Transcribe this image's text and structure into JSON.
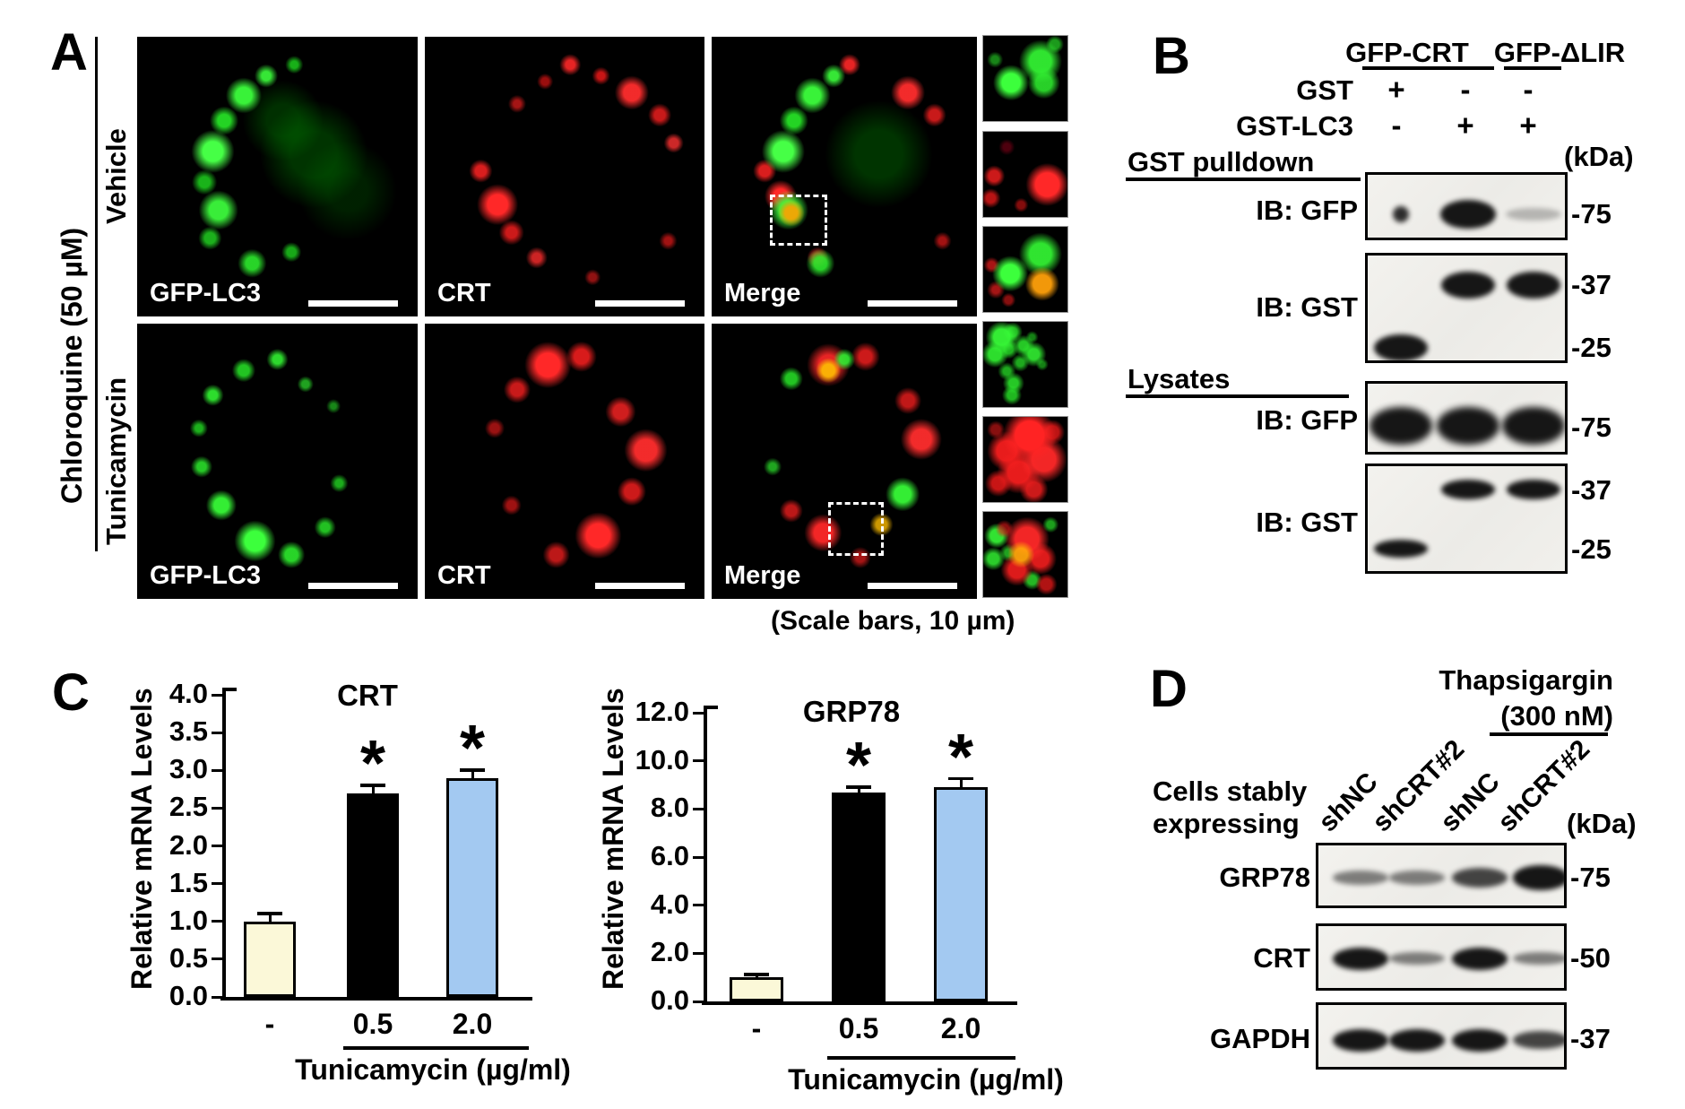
{
  "figure": {
    "panel_a": {
      "label": "A",
      "condition_label": "Chloroquine (50 µM)",
      "row_labels": [
        "Vehicle",
        "Tunicamycin"
      ],
      "channel_labels": [
        "GFP-LC3",
        "CRT",
        "Merge"
      ],
      "scale_note": "(Scale bars, 10 µm)"
    },
    "panel_b": {
      "label": "B",
      "group_labels": [
        "GFP-CRT",
        "GFP-ΔLIR"
      ],
      "condition_rows": [
        {
          "label": "GST",
          "values": [
            "+",
            "-",
            "-"
          ]
        },
        {
          "label": "GST-LC3",
          "values": [
            "-",
            "+",
            "+"
          ]
        }
      ],
      "kda_label": "(kDa)",
      "sections": [
        {
          "label": "GST pulldown",
          "blots": [
            {
              "antibody": "IB: GFP",
              "rows": [
                {
                  "marker": "-75",
                  "lanes": [
                    "dot",
                    "strong",
                    "faint"
                  ]
                }
              ]
            },
            {
              "antibody": "IB: GST",
              "rows": [
                {
                  "marker": "-37",
                  "lanes": [
                    "none",
                    "strong",
                    "strong"
                  ]
                },
                {
                  "marker": "-25",
                  "lanes": [
                    "strong",
                    "none",
                    "none"
                  ]
                }
              ]
            }
          ]
        },
        {
          "label": "Lysates",
          "blots": [
            {
              "antibody": "IB: GFP",
              "rows": [
                {
                  "marker": "-75",
                  "lanes": [
                    "strong",
                    "strong",
                    "strong"
                  ]
                }
              ]
            },
            {
              "antibody": "IB: GST",
              "rows": [
                {
                  "marker": "-37",
                  "lanes": [
                    "none",
                    "strong",
                    "strong"
                  ]
                },
                {
                  "marker": "-25",
                  "lanes": [
                    "strong",
                    "none",
                    "none"
                  ]
                }
              ]
            }
          ]
        }
      ]
    },
    "panel_c": {
      "label": "C"
    },
    "panel_d": {
      "label": "D",
      "treatment": {
        "name": "Thapsigargin",
        "dose": "(300 nM)"
      },
      "cells_label": [
        "Cells stably",
        "expressing"
      ],
      "lane_labels": [
        "shNC",
        "shCRT#2",
        "shNC",
        "shCRT#2"
      ],
      "kda_label": "(kDa)",
      "blots": [
        {
          "protein": "GRP78",
          "marker": "-75",
          "lanes": [
            "weak",
            "weak",
            "medium",
            "strong"
          ]
        },
        {
          "protein": "CRT",
          "marker": "-50",
          "lanes": [
            "strong",
            "weak",
            "strong",
            "weak"
          ]
        },
        {
          "protein": "GAPDH",
          "marker": "-37",
          "lanes": [
            "strong",
            "strong",
            "strong",
            "medium"
          ]
        }
      ]
    }
  },
  "chart_data": [
    {
      "type": "bar",
      "title": "CRT",
      "ylabel": "Relative mRNA Levels",
      "xlabel": "Tunicamycin (µg/ml)",
      "categories": [
        "-",
        "0.5",
        "2.0"
      ],
      "values": [
        1.0,
        2.7,
        2.9
      ],
      "errors": [
        0.1,
        0.1,
        0.1
      ],
      "significance": [
        "",
        "*",
        "*"
      ],
      "bar_colors": [
        "#FBF8D8",
        "#000000",
        "#A3C9F1"
      ],
      "ylim": [
        0,
        4.0
      ],
      "ytick_step": 0.5,
      "grid": false,
      "legend": false
    },
    {
      "type": "bar",
      "title": "GRP78",
      "ylabel": "Relative mRNA Levels",
      "xlabel": "Tunicamycin (µg/ml)",
      "categories": [
        "-",
        "0.5",
        "2.0"
      ],
      "values": [
        1.0,
        8.7,
        8.9
      ],
      "errors": [
        0.1,
        0.2,
        0.35
      ],
      "significance": [
        "",
        "*",
        "*"
      ],
      "bar_colors": [
        "#FBF8D8",
        "#000000",
        "#A3C9F1"
      ],
      "ylim": [
        0,
        12.0
      ],
      "ytick_step": 2.0,
      "grid": false,
      "legend": false
    }
  ]
}
